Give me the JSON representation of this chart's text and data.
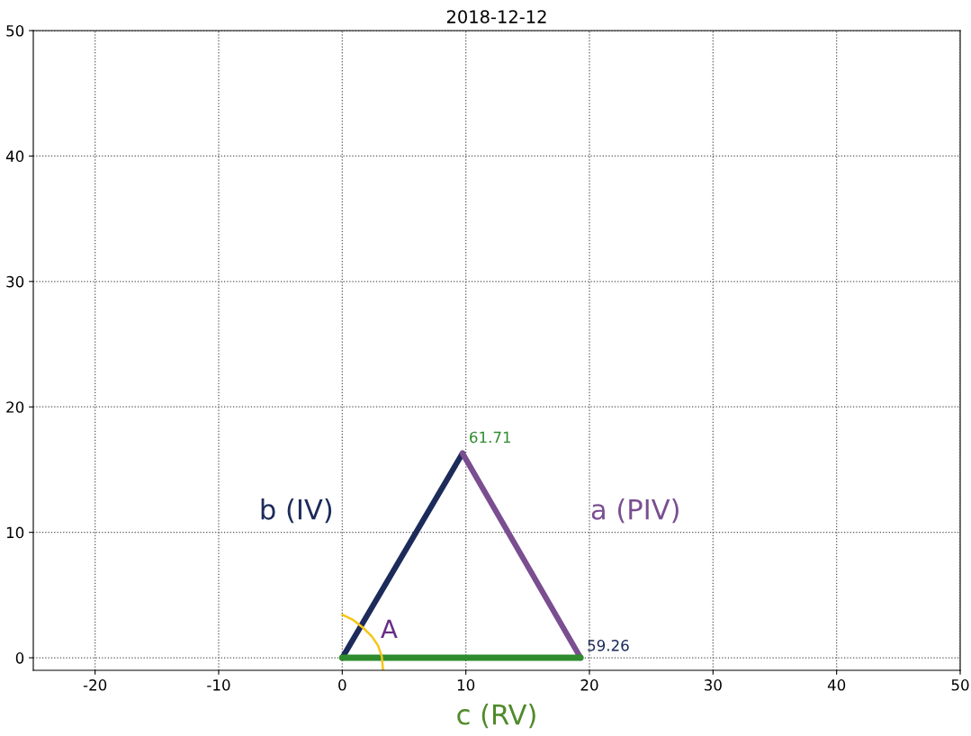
{
  "chart_data": {
    "type": "line",
    "title": "2018-12-12",
    "xlabel": "c (RV)",
    "xlim": [
      -25,
      50
    ],
    "ylim": [
      -1,
      50
    ],
    "xticks": [
      -20,
      -10,
      0,
      10,
      20,
      30,
      40,
      50
    ],
    "yticks": [
      0,
      10,
      20,
      30,
      40,
      50
    ],
    "grid": true,
    "line_style": "solid",
    "marker": "none",
    "series": [
      {
        "name": "b (IV)",
        "color": "#1c2b5a",
        "x": [
          0,
          9.73
        ],
        "values": [
          0,
          16.3
        ]
      },
      {
        "name": "a (PIV)",
        "color": "#7a4e90",
        "x": [
          9.73,
          19.28
        ],
        "values": [
          16.3,
          0
        ]
      },
      {
        "color": "#2e8b2e",
        "x": [
          0,
          19.28
        ],
        "values": [
          0,
          0
        ]
      },
      {
        "color": "#f5c518",
        "x": [
          0,
          0.9,
          1.69,
          2.4,
          2.9,
          3.2,
          3.3
        ],
        "values": [
          3.43,
          3.0,
          2.39,
          1.7,
          0.96,
          0.1,
          -1.0
        ]
      }
    ],
    "annotations": [
      {
        "text": "61.71",
        "x": 9.73,
        "y": 16.3
      },
      {
        "text": "59.26",
        "x": 19.28,
        "y": 0
      },
      {
        "text": "A",
        "x": 2.9,
        "y": 0.96
      }
    ]
  }
}
